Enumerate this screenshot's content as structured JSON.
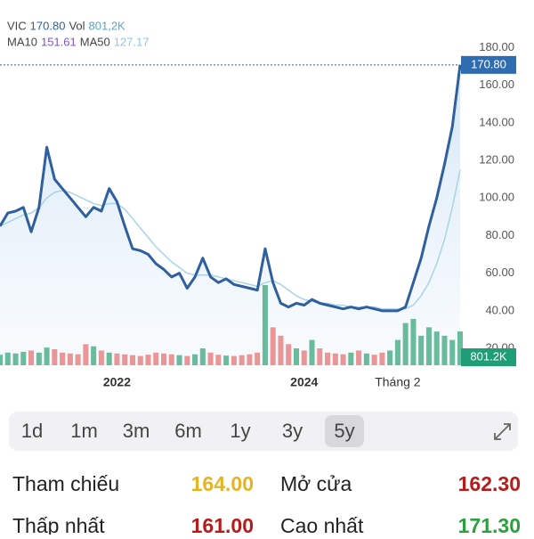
{
  "legend_extra": {
    "name": "MA10",
    "value": "151.61"
  },
  "chart_data": {
    "type": "line",
    "categories": [
      null,
      null,
      null,
      null,
      null,
      null,
      null,
      null,
      null,
      null,
      null,
      null,
      null,
      null,
      null,
      "2022",
      null,
      null,
      null,
      null,
      null,
      null,
      null,
      null,
      null,
      null,
      null,
      null,
      null,
      null,
      null,
      null,
      null,
      null,
      null,
      null,
      null,
      null,
      null,
      "2024",
      null,
      null,
      null,
      null,
      null,
      null,
      null,
      null,
      null,
      null,
      null,
      "Tháng 2",
      null,
      null,
      null,
      null,
      null,
      null,
      null,
      null
    ],
    "series": [
      {
        "name": "VIC",
        "color": "#2f5f9e",
        "legend_value": "170.80",
        "values": [
          85,
          92,
          93,
          95,
          82,
          95,
          127,
          110,
          105,
          100,
          95,
          90,
          95,
          93,
          105,
          98,
          85,
          73,
          72,
          70,
          65,
          62,
          58,
          60,
          52,
          58,
          68,
          58,
          55,
          57,
          54,
          53,
          52,
          51,
          73,
          55,
          44,
          42,
          44,
          43,
          46,
          44,
          43,
          42,
          41,
          42,
          41,
          42,
          41,
          40,
          40,
          40,
          42,
          55,
          68,
          85,
          100,
          118,
          138,
          170.8
        ]
      },
      {
        "name": "MA50",
        "color": "#a8d3ec",
        "legend_value": "127.17",
        "values": [
          85,
          87,
          89,
          91,
          92,
          95,
          100,
          103,
          104,
          103,
          101,
          99,
          97,
          96,
          97,
          97,
          94,
          89,
          84,
          79,
          74,
          70,
          66,
          63,
          60,
          59,
          59,
          59,
          58,
          57,
          56,
          55,
          54,
          53,
          55,
          56,
          54,
          51,
          48,
          46,
          45,
          44,
          44,
          43,
          43,
          42,
          42,
          42,
          42,
          41,
          41,
          41,
          41,
          43,
          48,
          55,
          65,
          78,
          95,
          115
        ]
      }
    ],
    "volume": {
      "name": "Vol",
      "legend_value": "801,2K",
      "last_label": "801.2K",
      "up_color": "#3aa57a",
      "down_color": "#e57373",
      "values": [
        250,
        300,
        280,
        320,
        350,
        300,
        420,
        380,
        300,
        280,
        260,
        500,
        450,
        350,
        300,
        280,
        260,
        240,
        220,
        250,
        300,
        280,
        260,
        240,
        220,
        260,
        400,
        300,
        250,
        230,
        220,
        240,
        260,
        300,
        1900,
        900,
        700,
        500,
        400,
        350,
        600,
        400,
        300,
        280,
        260,
        300,
        350,
        280,
        250,
        300,
        350,
        600,
        1000,
        1100,
        700,
        900,
        800,
        700,
        600,
        801.2
      ]
    },
    "ylim": [
      11,
      184
    ],
    "yticks": [
      {
        "value": 20,
        "label": "20.00"
      },
      {
        "value": 40,
        "label": "40.00"
      },
      {
        "value": 60,
        "label": "60.00"
      },
      {
        "value": 80,
        "label": "80.00"
      },
      {
        "value": 100,
        "label": "100.00"
      },
      {
        "value": 120,
        "label": "120.00"
      },
      {
        "value": 140,
        "label": "140.00"
      },
      {
        "value": 160,
        "label": "160.00"
      },
      {
        "value": 180,
        "label": "180.00"
      }
    ],
    "grid": false
  },
  "periods": {
    "items": [
      "1d",
      "1m",
      "3m",
      "6m",
      "1y",
      "3y",
      "5y"
    ],
    "selected": 6
  },
  "stats": [
    [
      {
        "label": "Tham chiếu",
        "value": "164.00",
        "color": "#e6b422"
      },
      {
        "label": "Mở cửa",
        "value": "162.30",
        "color": "#b71c1c"
      }
    ],
    [
      {
        "label": "Thấp nhất",
        "value": "161.00",
        "color": "#b71c1c"
      },
      {
        "label": "Cao nhất",
        "value": "171.30",
        "color": "#2e9e3e"
      }
    ]
  ]
}
